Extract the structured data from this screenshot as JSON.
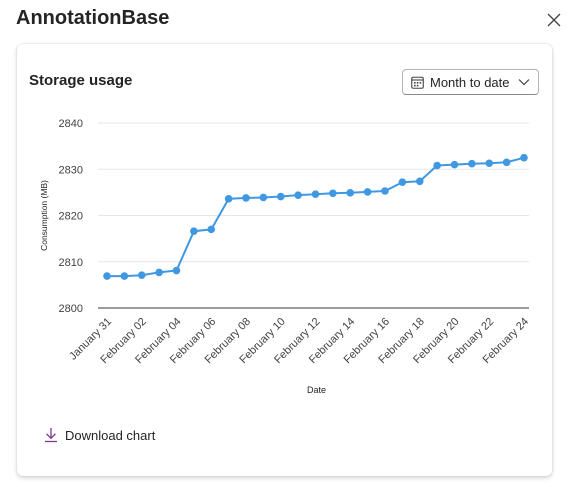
{
  "app": {
    "title": "AnnotationBase"
  },
  "card": {
    "title": "Storage usage",
    "range_select": {
      "value": "Month to date"
    },
    "download_label": "Download chart"
  },
  "colors": {
    "accent": "#4098e3",
    "download_icon": "#7a3b8f"
  },
  "icons": {
    "close": "close-icon",
    "calendar": "calendar-icon",
    "chevron": "chevron-down-icon",
    "download": "download-icon"
  },
  "chart_data": {
    "type": "line",
    "xlabel": "Date",
    "ylabel": "Consumption (MB)",
    "ylim": [
      2800,
      2840
    ],
    "yticks": [
      2800,
      2810,
      2820,
      2830,
      2840
    ],
    "grid": true,
    "x": [
      "January 31",
      "February 01",
      "February 02",
      "February 03",
      "February 04",
      "February 05",
      "February 06",
      "February 07",
      "February 08",
      "February 09",
      "February 10",
      "February 11",
      "February 12",
      "February 13",
      "February 14",
      "February 15",
      "February 16",
      "February 17",
      "February 18",
      "February 19",
      "February 20",
      "February 21",
      "February 22",
      "February 23",
      "February 24"
    ],
    "xtick_labels": [
      "January 31",
      "February 02",
      "February 04",
      "February 06",
      "February 08",
      "February 10",
      "February 12",
      "February 14",
      "February 16",
      "February 18",
      "February 20",
      "February 22",
      "February 24"
    ],
    "series": [
      {
        "values": [
          2806.9,
          2806.9,
          2807.1,
          2807.7,
          2808.1,
          2816.6,
          2817.0,
          2823.6,
          2823.8,
          2823.9,
          2824.1,
          2824.4,
          2824.6,
          2824.8,
          2824.9,
          2825.1,
          2825.3,
          2827.2,
          2827.4,
          2830.8,
          2831.0,
          2831.2,
          2831.3,
          2831.5,
          2832.5
        ]
      }
    ]
  }
}
